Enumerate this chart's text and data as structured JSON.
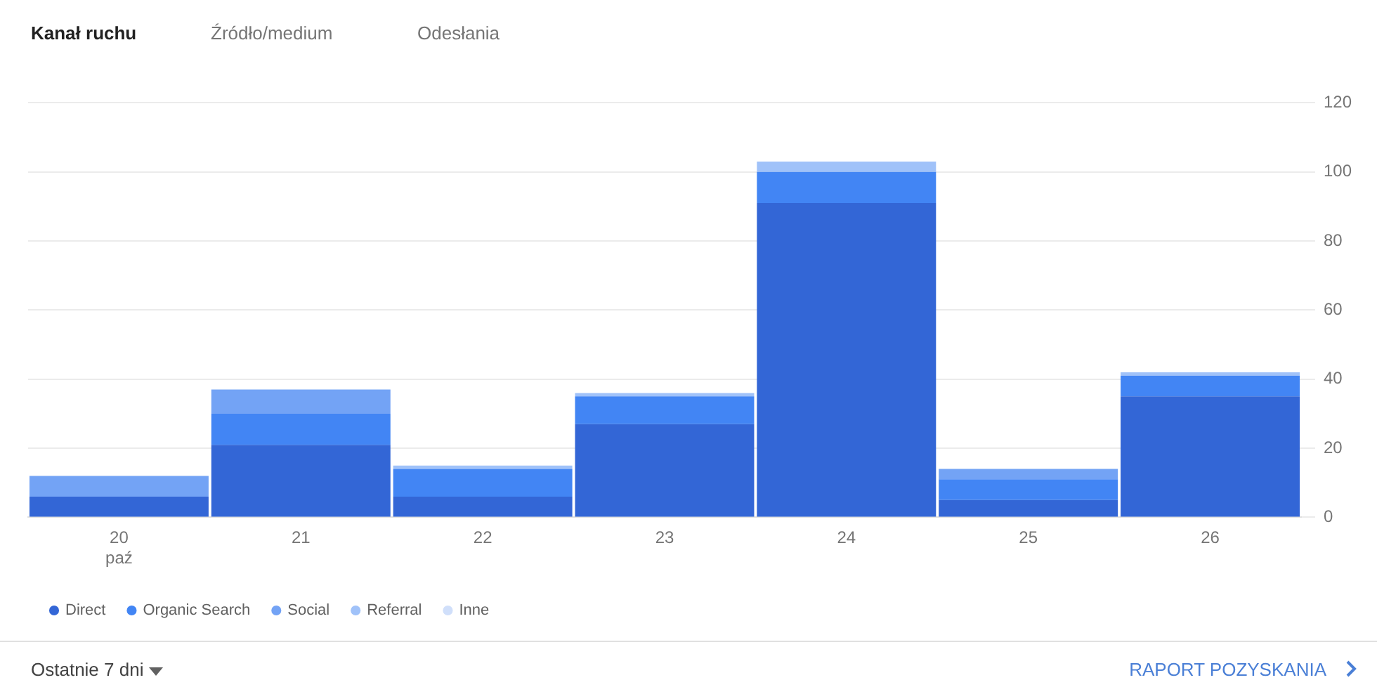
{
  "chart_data": {
    "type": "bar",
    "stacked": true,
    "categories": [
      "20\npaź",
      "21",
      "22",
      "23",
      "24",
      "25",
      "26"
    ],
    "series": [
      {
        "name": "Direct",
        "color": "#3366d6",
        "values": [
          6,
          21,
          6,
          27,
          91,
          5,
          35
        ]
      },
      {
        "name": "Organic Search",
        "color": "#4285f4",
        "values": [
          0,
          9,
          8,
          8,
          9,
          6,
          6
        ]
      },
      {
        "name": "Social",
        "color": "#73a3f5",
        "values": [
          6,
          7,
          0,
          0,
          0,
          3,
          0
        ]
      },
      {
        "name": "Referral",
        "color": "#a0c2f9",
        "values": [
          0,
          0,
          1,
          1,
          3,
          0,
          1
        ]
      },
      {
        "name": "Inne",
        "color": "#d0dffa",
        "values": [
          0,
          0,
          0,
          0,
          0,
          0,
          0
        ]
      }
    ],
    "ylim": [
      0,
      120
    ],
    "yticks": [
      0,
      20,
      40,
      60,
      80,
      100,
      120
    ],
    "grid": "y",
    "legend": "bottom left",
    "annotations": [
      "Kanał ruchu",
      "Źródło/medium",
      "Odesłania",
      "Ostatnie 7 dni",
      "RAPORT POZYSKANIA"
    ]
  }
}
